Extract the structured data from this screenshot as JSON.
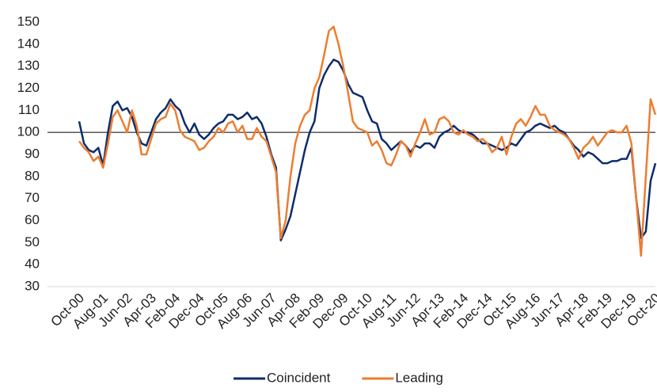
{
  "chart_data": {
    "type": "line",
    "categories": [
      "Oct-00",
      null,
      null,
      null,
      null,
      "Aug-01",
      null,
      null,
      null,
      null,
      "Jun-02",
      null,
      null,
      null,
      null,
      "Apr-03",
      null,
      null,
      null,
      null,
      "Feb-04",
      null,
      null,
      null,
      null,
      "Dec-04",
      null,
      null,
      null,
      null,
      "Oct-05",
      null,
      null,
      null,
      null,
      "Aug-06",
      null,
      null,
      null,
      null,
      "Jun-07",
      null,
      null,
      null,
      null,
      "Apr-08",
      null,
      null,
      null,
      null,
      "Feb-09",
      null,
      null,
      null,
      null,
      "Dec-09",
      null,
      null,
      null,
      null,
      "Oct-10",
      null,
      null,
      null,
      null,
      "Aug-11",
      null,
      null,
      null,
      null,
      "Jun-12",
      null,
      null,
      null,
      null,
      "Apr-13",
      null,
      null,
      null,
      null,
      "Feb-14",
      null,
      null,
      null,
      null,
      "Dec-14",
      null,
      null,
      null,
      null,
      "Oct-15",
      null,
      null,
      null,
      null,
      "Aug-16",
      null,
      null,
      null,
      null,
      "Jun-17",
      null,
      null,
      null,
      null,
      "Apr-18",
      null,
      null,
      null,
      null,
      "Feb-19",
      null,
      null,
      null,
      null,
      "Dec-19",
      null,
      null,
      null,
      null,
      "Oct-20"
    ],
    "series": [
      {
        "name": "Coincident",
        "color": "#0d2c6c",
        "values": [
          105,
          95,
          92,
          91,
          93,
          85,
          100,
          112,
          114,
          110,
          111,
          107,
          100,
          95,
          94,
          100,
          106,
          109,
          111,
          115,
          112,
          110,
          104,
          100,
          104,
          99,
          97,
          99,
          102,
          104,
          105,
          108,
          108,
          106,
          107,
          109,
          106,
          107,
          104,
          98,
          90,
          84,
          51,
          56,
          62,
          72,
          82,
          92,
          100,
          105,
          120,
          126,
          130,
          133,
          132,
          128,
          122,
          118,
          117,
          116,
          110,
          105,
          104,
          97,
          95,
          92,
          94,
          96,
          94,
          91,
          94,
          93,
          95,
          95,
          93,
          98,
          100,
          101,
          103,
          101,
          100,
          100,
          99,
          97,
          95,
          95,
          94,
          93,
          92,
          93,
          95,
          94,
          97,
          100,
          101,
          103,
          104,
          103,
          102,
          103,
          101,
          100,
          97,
          94,
          92,
          89,
          91,
          90,
          88,
          86,
          86,
          87,
          87,
          88,
          88,
          93,
          70,
          52,
          55,
          78,
          86
        ]
      },
      {
        "name": "Leading",
        "color": "#ed7d31",
        "values": [
          96,
          93,
          91,
          87,
          89,
          84,
          95,
          107,
          110,
          105,
          100,
          110,
          103,
          90,
          90,
          97,
          104,
          106,
          107,
          113,
          110,
          101,
          98,
          97,
          96,
          92,
          93,
          96,
          98,
          102,
          100,
          104,
          105,
          100,
          103,
          97,
          97,
          102,
          98,
          96,
          89,
          82,
          52,
          60,
          80,
          95,
          103,
          108,
          110,
          120,
          125,
          135,
          146,
          148,
          140,
          130,
          118,
          105,
          102,
          101,
          100,
          94,
          96,
          92,
          86,
          85,
          90,
          96,
          94,
          89,
          95,
          100,
          106,
          99,
          100,
          106,
          107,
          105,
          100,
          99,
          101,
          99,
          98,
          96,
          97,
          95,
          91,
          93,
          98,
          90,
          98,
          104,
          106,
          103,
          107,
          112,
          108,
          108,
          103,
          101,
          100,
          99,
          97,
          93,
          88,
          93,
          95,
          98,
          94,
          97,
          100,
          101,
          100,
          100,
          103,
          95,
          70,
          44,
          80,
          115,
          108
        ]
      }
    ],
    "ylim": [
      30,
      150
    ],
    "yticks": [
      30,
      40,
      50,
      60,
      70,
      80,
      90,
      100,
      110,
      120,
      130,
      140,
      150
    ],
    "reference_line": 100,
    "grid": false,
    "legend": "bottom"
  }
}
